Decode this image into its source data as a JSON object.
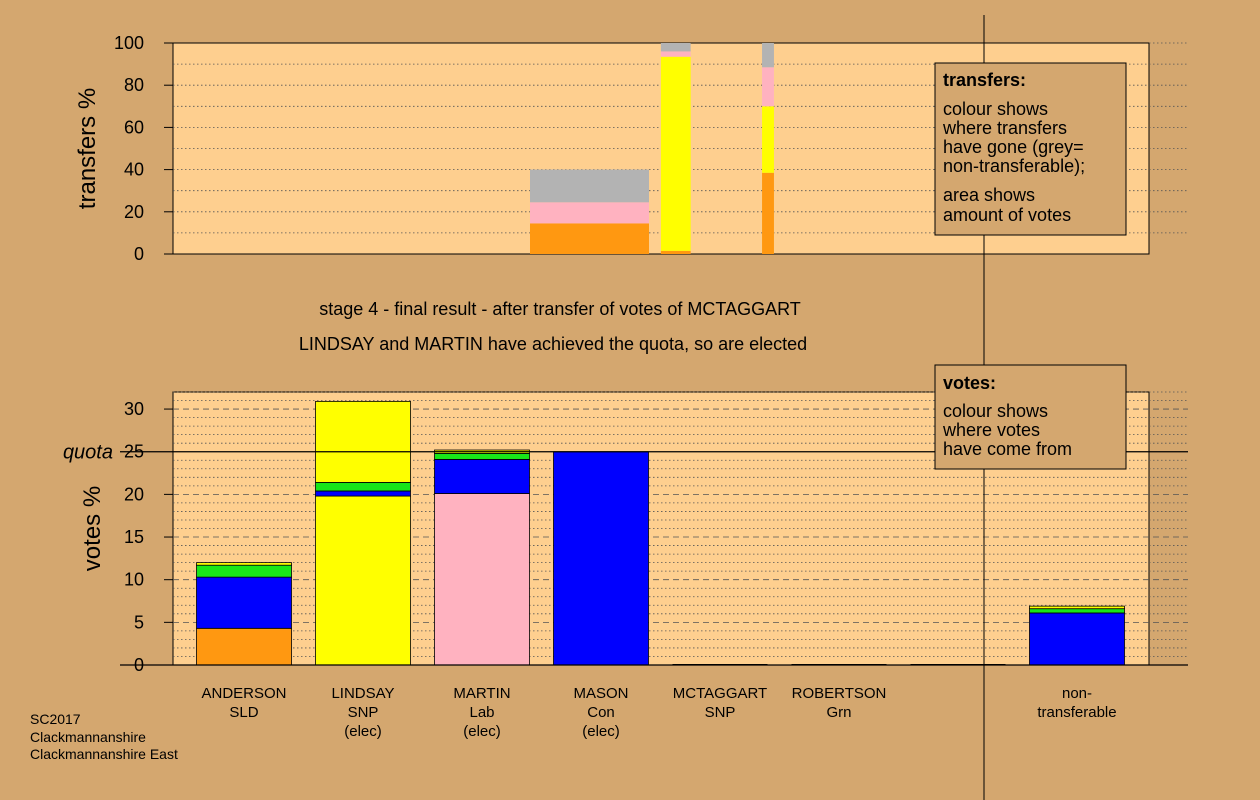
{
  "headings": {
    "stage": "stage 4 - final result - after transfer of votes of MCTAGGART",
    "result": "LINDSAY and MARTIN have achieved the quota, so are elected"
  },
  "footer": {
    "line1": "SC2017",
    "line2": "Clackmannanshire",
    "line3": "Clackmannanshire East"
  },
  "legends": {
    "transfers": {
      "title": "transfers:",
      "lines1": [
        "colour shows",
        "where transfers",
        "have gone (grey=",
        "non-transferable);"
      ],
      "lines2": [
        "area shows",
        "amount of votes"
      ]
    },
    "votes": {
      "title": "votes:",
      "lines1": [
        "colour shows",
        "where votes",
        "have come from"
      ]
    }
  },
  "colors": {
    "page_bg": "#d4a76f",
    "plot_bg": "#fecf8f",
    "SLD": "#ff9811",
    "Con": "#0000ff",
    "Green": "#19e619",
    "SNP": "#ffff00",
    "Lab": "#ffb2c0",
    "NonTransferable": "#b3b3b3"
  },
  "chart_data": [
    {
      "type": "bar",
      "stacked": true,
      "ylabel": "transfers %",
      "ylim": [
        0,
        100
      ],
      "yticks": [
        0,
        20,
        40,
        60,
        80,
        100
      ],
      "grid": "dotted",
      "legend_position": "top-right",
      "bars": [
        {
          "x_from": 3.0,
          "x_to": 4.0,
          "segments": [
            {
              "color": "SLD",
              "value": 14.5
            },
            {
              "color": "Lab",
              "value": 10.0
            },
            {
              "color": "NonTransferable",
              "value": 15.5
            }
          ]
        },
        {
          "x_from": 4.1,
          "x_to": 4.35,
          "segments": [
            {
              "color": "SLD",
              "value": 1.5
            },
            {
              "color": "SNP",
              "value": 92.0
            },
            {
              "color": "Lab",
              "value": 2.5
            },
            {
              "color": "NonTransferable",
              "value": 4.0
            }
          ]
        },
        {
          "x_from": 4.95,
          "x_to": 5.05,
          "segments": [
            {
              "color": "SLD",
              "value": 38.5
            },
            {
              "color": "SNP",
              "value": 31.5
            },
            {
              "color": "Lab",
              "value": 18.5
            },
            {
              "color": "NonTransferable",
              "value": 11.5
            }
          ]
        }
      ]
    },
    {
      "type": "bar",
      "stacked": true,
      "ylabel": "votes %",
      "ylim": [
        0,
        32
      ],
      "yticks": [
        0,
        5,
        10,
        15,
        20,
        25,
        30
      ],
      "quota": 25,
      "quota_label": "quota",
      "grid": "dashed",
      "legend_position": "top-right",
      "categories": [
        {
          "name": "ANDERSON",
          "party": "SLD",
          "note": ""
        },
        {
          "name": "LINDSAY",
          "party": "SNP",
          "note": "(elec)"
        },
        {
          "name": "MARTIN",
          "party": "Lab",
          "note": "(elec)"
        },
        {
          "name": "MASON",
          "party": "Con",
          "note": "(elec)"
        },
        {
          "name": "MCTAGGART",
          "party": "SNP",
          "note": ""
        },
        {
          "name": "ROBERTSON",
          "party": "Grn",
          "note": ""
        },
        {
          "name": "",
          "party": "",
          "note": ""
        },
        {
          "name": "non-",
          "party": "transferable",
          "note": ""
        }
      ],
      "stacks": [
        [
          {
            "color": "SLD",
            "value": 4.3
          },
          {
            "color": "Con",
            "value": 6.0
          },
          {
            "color": "Green",
            "value": 1.4
          },
          {
            "color": "SNP",
            "value": 0.3
          }
        ],
        [
          {
            "color": "SNP",
            "value": 19.8
          },
          {
            "color": "Con",
            "value": 0.6
          },
          {
            "color": "Green",
            "value": 1.0
          },
          {
            "color": "SNP",
            "value": 9.5
          }
        ],
        [
          {
            "color": "Lab",
            "value": 20.1
          },
          {
            "color": "Con",
            "value": 4.0
          },
          {
            "color": "Green",
            "value": 0.7
          },
          {
            "color": "SNP",
            "value": 0.4
          }
        ],
        [
          {
            "color": "Con",
            "value": 25.0
          }
        ],
        [],
        [],
        [],
        [
          {
            "color": "Con",
            "value": 6.1
          },
          {
            "color": "Green",
            "value": 0.5
          },
          {
            "color": "SNP",
            "value": 0.3
          }
        ]
      ]
    }
  ]
}
